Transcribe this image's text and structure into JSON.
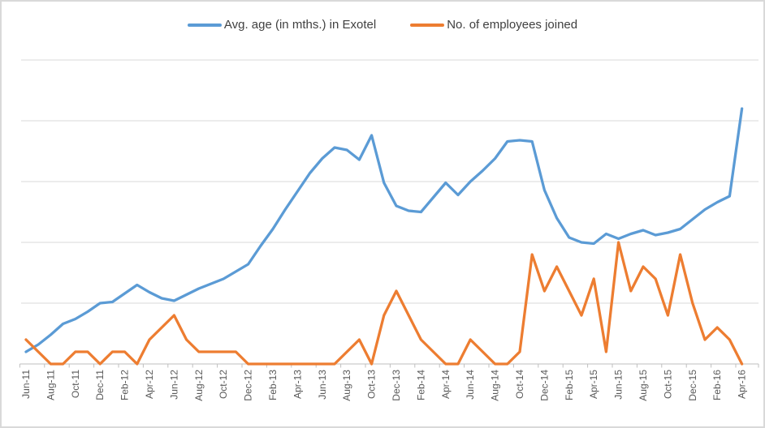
{
  "chart_data": {
    "type": "line",
    "title": "",
    "legend_position": "top",
    "grid": "horizontal",
    "x": [
      "Jun-11",
      "Jul-11",
      "Aug-11",
      "Sep-11",
      "Oct-11",
      "Nov-11",
      "Dec-11",
      "Jan-12",
      "Feb-12",
      "Mar-12",
      "Apr-12",
      "May-12",
      "Jun-12",
      "Jul-12",
      "Aug-12",
      "Sep-12",
      "Oct-12",
      "Nov-12",
      "Dec-12",
      "Jan-13",
      "Feb-13",
      "Mar-13",
      "Apr-13",
      "May-13",
      "Jun-13",
      "Jul-13",
      "Aug-13",
      "Sep-13",
      "Oct-13",
      "Nov-13",
      "Dec-13",
      "Jan-14",
      "Feb-14",
      "Mar-14",
      "Apr-14",
      "May-14",
      "Jun-14",
      "Jul-14",
      "Aug-14",
      "Sep-14",
      "Oct-14",
      "Nov-14",
      "Dec-14",
      "Jan-15",
      "Feb-15",
      "Mar-15",
      "Apr-15",
      "May-15",
      "Jun-15",
      "Jul-15",
      "Aug-15",
      "Sep-15",
      "Oct-15",
      "Nov-15",
      "Dec-15",
      "Jan-16",
      "Feb-16",
      "Mar-16",
      "Apr-16"
    ],
    "x_tick_labels": [
      "Jun-11",
      "Aug-11",
      "Oct-11",
      "Dec-11",
      "Feb-12",
      "Apr-12",
      "Jun-12",
      "Aug-12",
      "Oct-12",
      "Dec-12",
      "Feb-13",
      "Apr-13",
      "Jun-13",
      "Aug-13",
      "Oct-13",
      "Dec-13",
      "Feb-14",
      "Apr-14",
      "Jun-14",
      "Aug-14",
      "Oct-14",
      "Dec-14",
      "Feb-15",
      "Apr-15",
      "Jun-15",
      "Aug-15",
      "Oct-15",
      "Dec-15",
      "Feb-16",
      "Apr-16"
    ],
    "x_label_interval": 2,
    "series": [
      {
        "name": "Avg. age (in mths.) in Exotel",
        "color": "#5B9BD5",
        "values": [
          1.0,
          1.6,
          2.4,
          3.3,
          3.7,
          4.3,
          5.0,
          5.1,
          5.8,
          6.5,
          5.9,
          5.4,
          5.2,
          5.7,
          6.2,
          6.6,
          7.0,
          7.6,
          8.2,
          9.7,
          11.1,
          12.7,
          14.2,
          15.7,
          16.9,
          17.8,
          17.6,
          16.8,
          18.8,
          14.9,
          13.0,
          12.6,
          12.5,
          13.7,
          14.9,
          13.9,
          15.0,
          15.9,
          16.9,
          18.3,
          18.4,
          18.3,
          14.3,
          12.0,
          10.4,
          10.0,
          9.9,
          10.7,
          10.3,
          10.7,
          11.0,
          10.6,
          10.8,
          11.1,
          11.9,
          12.7,
          13.3,
          13.8,
          21.0
        ]
      },
      {
        "name": "No. of employees joined",
        "color": "#ED7D31",
        "values": [
          2,
          1,
          0,
          0,
          1,
          1,
          0,
          1,
          1,
          0,
          2,
          3,
          4,
          2,
          1,
          1,
          1,
          1,
          0,
          0,
          0,
          0,
          0,
          0,
          0,
          0,
          1,
          2,
          0,
          4,
          6,
          4,
          2,
          1,
          0,
          0,
          2,
          1,
          0,
          0,
          1,
          9,
          6,
          8,
          6,
          4,
          7,
          1,
          10,
          6,
          8,
          7,
          4,
          9,
          5,
          2,
          3,
          2,
          0
        ]
      }
    ],
    "y_axis": {
      "labels_visible": false,
      "ylim": [
        0,
        25
      ],
      "gridline_step": 5,
      "gridlines_shown": 5
    }
  },
  "colors": {
    "background": "#FFFFFF",
    "border": "#D9D9D9",
    "gridline": "#D9D9D9",
    "axis_line": "#BFBFBF",
    "tick": "#BFBFBF",
    "axis_label_text": "#595959",
    "legend_text": "#404040"
  }
}
